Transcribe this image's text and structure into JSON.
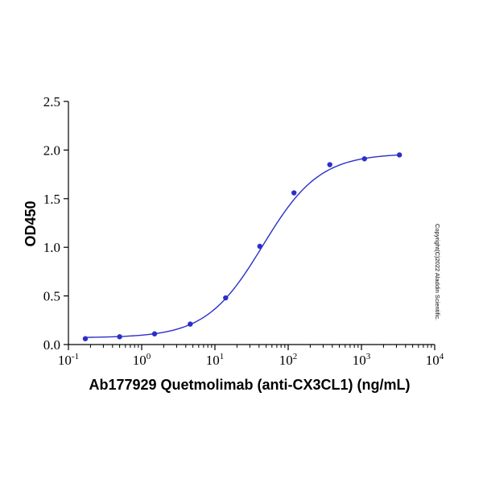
{
  "chart_data": {
    "type": "scatter",
    "xlabel": "Ab177929 Quetmolimab (anti-CX3CL1) (ng/mL)",
    "ylabel": "OD450",
    "x_scale": "log",
    "xlim": [
      0.1,
      10000
    ],
    "ylim": [
      0,
      2.5
    ],
    "x_ticks": [
      {
        "base": "10",
        "exp": "-1"
      },
      {
        "base": "10",
        "exp": "0"
      },
      {
        "base": "10",
        "exp": "1"
      },
      {
        "base": "10",
        "exp": "2"
      },
      {
        "base": "10",
        "exp": "3"
      },
      {
        "base": "10",
        "exp": "4"
      }
    ],
    "y_ticks": [
      "0.0",
      "0.5",
      "1.0",
      "1.5",
      "2.0",
      "2.5"
    ],
    "grid": false,
    "series": [
      {
        "x": [
          0.17,
          0.5,
          1.5,
          4.6,
          14,
          41,
          120,
          370,
          1100,
          3300
        ],
        "y": [
          0.06,
          0.08,
          0.11,
          0.21,
          0.48,
          1.01,
          1.56,
          1.85,
          1.91,
          1.95
        ],
        "color": "#2b2fc8"
      }
    ],
    "fit_curve": {
      "model": "4PL",
      "bottom": 0.07,
      "top": 1.965,
      "ec50": 45,
      "hill": 1.12,
      "color": "#2b2fc8"
    },
    "annotation": "Copyright(C)2022 Aladdin Scientific."
  }
}
